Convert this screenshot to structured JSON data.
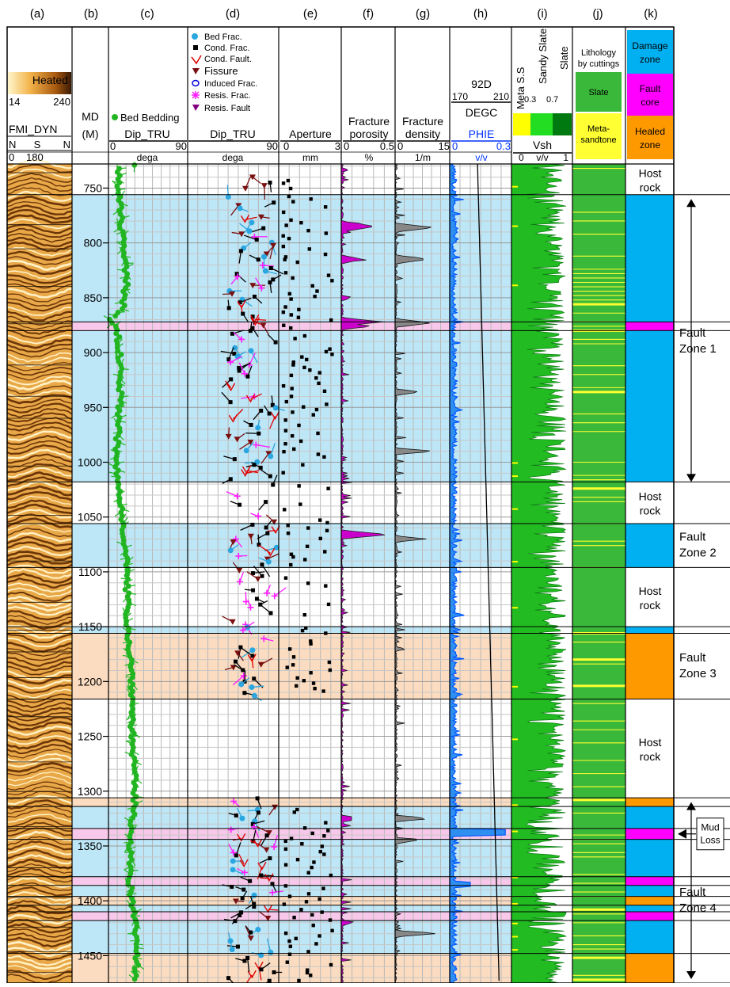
{
  "chart_data": {
    "type": "well-log",
    "depth_axis": {
      "label": "MD",
      "unit": "(M)",
      "ticks": [
        750,
        800,
        850,
        900,
        950,
        1000,
        1050,
        1100,
        1150,
        1200,
        1250,
        1300,
        1350,
        1400,
        1450
      ],
      "range": [
        728,
        1475
      ]
    },
    "track_letters": [
      "(a)",
      "(b)",
      "(c)",
      "(d)",
      "(e)",
      "(f)",
      "(g)",
      "(h)",
      "(i)",
      "(j)",
      "(k)"
    ],
    "tracks": {
      "a": {
        "title": "FMI_DYN",
        "scale_label": "Heated",
        "scale_min": "14",
        "scale_max": "240",
        "azimuth_labels": [
          "N",
          "S",
          "N"
        ],
        "azimuth_values": [
          "0",
          "180"
        ]
      },
      "c": {
        "legend": "Bed Bedding",
        "title": "Dip_TRU",
        "min": "0",
        "max": "90",
        "unit": "dega"
      },
      "d": {
        "legend": [
          "Bed Frac.",
          "Cond. Frac.",
          "Cond. Fault.",
          "Fissure",
          "Induced Frac.",
          "Resis. Frac.",
          "Resis. Fault"
        ],
        "title": "Dip_TRU",
        "min": "0",
        "max": "90",
        "unit": "dega"
      },
      "e": {
        "title": "Aperture",
        "min": "0",
        "max": "3",
        "unit": "mm"
      },
      "f": {
        "title1": "Fracture",
        "title2": "porosity",
        "min": "0",
        "max": "0.5",
        "unit": "%"
      },
      "g": {
        "title1": "Fracture",
        "title2": "density",
        "min": "0",
        "max": "15",
        "unit": "1/m"
      },
      "h": {
        "temp_title": "92D",
        "temp_min": "170",
        "temp_max": "210",
        "temp_unit": "DEGC",
        "por_title": "PHIE",
        "por_min": "0",
        "por_max": "0.3",
        "por_unit": "v/v"
      },
      "i": {
        "classes": [
          "Meta S.S",
          "Sandy Slate",
          "Slate"
        ],
        "cutoffs": [
          "0.3",
          "0.7"
        ],
        "title": "Vsh",
        "min": "0",
        "max": "1",
        "unit": "v/v"
      },
      "j": {
        "title1": "Lithology",
        "title2": "by cuttings",
        "legend": [
          "Slate",
          "Meta-",
          "sandtone"
        ]
      },
      "k": {
        "legend": [
          [
            "Damage",
            "zone"
          ],
          [
            "Fault",
            "core"
          ],
          [
            "Healed",
            "zone"
          ]
        ]
      }
    },
    "zones": [
      {
        "top": 728,
        "base": 756,
        "type": "host",
        "label": [
          "Host",
          "rock"
        ]
      },
      {
        "top": 756,
        "base": 1018,
        "type": "damage",
        "label": []
      },
      {
        "top": 1018,
        "base": 1056,
        "type": "host",
        "label": [
          "Host",
          "rock"
        ]
      },
      {
        "top": 1056,
        "base": 1096,
        "type": "damage",
        "label": []
      },
      {
        "top": 1096,
        "base": 1150,
        "type": "host",
        "label": [
          "Host",
          "rock"
        ]
      },
      {
        "top": 1150,
        "base": 1156,
        "type": "damage",
        "label": []
      },
      {
        "top": 1156,
        "base": 1216,
        "type": "healed",
        "label": []
      },
      {
        "top": 1216,
        "base": 1306,
        "type": "host",
        "label": [
          "Host",
          "rock"
        ]
      },
      {
        "top": 1306,
        "base": 1314,
        "type": "healed",
        "label": []
      },
      {
        "top": 1314,
        "base": 1475,
        "type": "damage",
        "label": []
      }
    ],
    "fault_cores": [
      [
        872,
        880
      ],
      [
        1334,
        1344
      ],
      [
        1378,
        1386
      ],
      [
        1410,
        1418
      ]
    ],
    "healed_bands": [
      [
        1396,
        1404
      ],
      [
        1448,
        1475
      ]
    ],
    "fault_zone_labels": [
      {
        "depth": 890,
        "text": [
          "Fault",
          "Zone 1"
        ]
      },
      {
        "depth": 1076,
        "text": [
          "Fault",
          "Zone 2"
        ]
      },
      {
        "depth": 1186,
        "text": [
          "Fault",
          "Zone 3"
        ]
      },
      {
        "depth": 1400,
        "text": [
          "Fault",
          "Zone 4"
        ]
      }
    ],
    "arrows": [
      {
        "from": 760,
        "to": 1018
      },
      {
        "from": 1310,
        "to": 1475
      }
    ],
    "annotation": {
      "text": [
        "Mud",
        "Loss"
      ],
      "depth": 1339
    },
    "colors": {
      "damage": "#bde6f7",
      "fault_core": "#f8c8ea",
      "healed": "#fbdcc0",
      "zone_damage": "#00b0f0",
      "zone_core": "#ff00ff",
      "zone_healed": "#ff9900",
      "bedding": "#22b522",
      "vsh": "#22bb22",
      "porosity": "#0055ff",
      "fracture_porosity": "#cc00cc",
      "density": "#888888"
    },
    "bedding_dip_profile": [
      [
        730,
        10
      ],
      [
        760,
        12
      ],
      [
        800,
        17
      ],
      [
        840,
        20
      ],
      [
        860,
        16
      ],
      [
        870,
        3
      ],
      [
        880,
        10
      ],
      [
        920,
        14
      ],
      [
        960,
        12
      ],
      [
        1000,
        8
      ],
      [
        1040,
        14
      ],
      [
        1080,
        20
      ],
      [
        1120,
        21
      ],
      [
        1150,
        22
      ],
      [
        1200,
        27
      ],
      [
        1250,
        27
      ],
      [
        1300,
        30
      ],
      [
        1340,
        26
      ],
      [
        1380,
        23
      ],
      [
        1420,
        30
      ],
      [
        1450,
        33
      ],
      [
        1475,
        30
      ]
    ]
  }
}
